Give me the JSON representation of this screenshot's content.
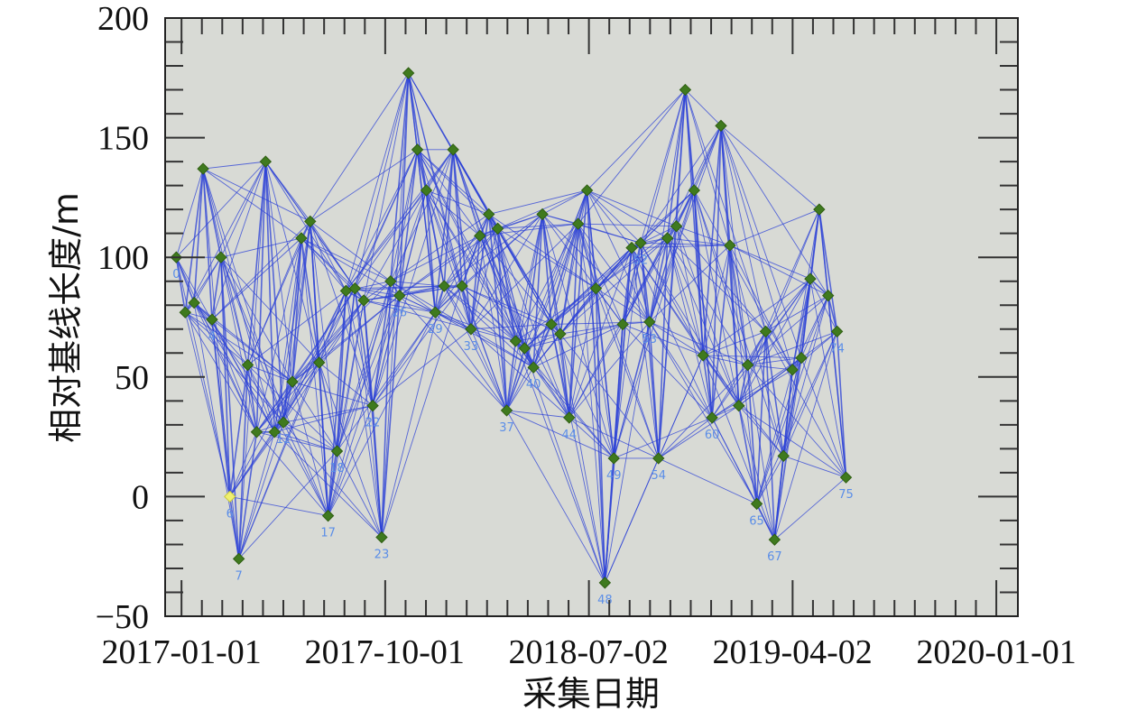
{
  "chart_data": {
    "type": "scatter",
    "xlabel": "采集日期",
    "ylabel": "相对基线长度/m",
    "x_range": [
      "2016-12-10",
      "2020-01-30"
    ],
    "ylim": [
      -50,
      200
    ],
    "x_tick_labels": [
      "2017-01-01",
      "2017-10-01",
      "2018-07-02",
      "2019-04-02",
      "2020-01-01"
    ],
    "y_tick_labels": [
      "−50",
      "0",
      "50",
      "100",
      "150",
      "200"
    ],
    "y_ticks": [
      -50,
      0,
      50,
      100,
      150,
      200
    ],
    "grid": false,
    "background_color": "#d8dad5",
    "marker_color": "#3f7a1e",
    "reference_marker_color": "#f0f070",
    "edge_color": "#2a3fd6",
    "label_color": "#5b8ee8",
    "points": [
      {
        "id": 1,
        "x": "2016-12-25",
        "y": 100,
        "label": "0"
      },
      {
        "id": 2,
        "x": "2017-01-06",
        "y": 77,
        "label": ""
      },
      {
        "id": 3,
        "x": "2017-01-18",
        "y": 81,
        "label": ""
      },
      {
        "id": 4,
        "x": "2017-01-30",
        "y": 137,
        "label": ""
      },
      {
        "id": 5,
        "x": "2017-02-11",
        "y": 74,
        "label": "4"
      },
      {
        "id": 6,
        "x": "2017-02-23",
        "y": 100,
        "label": ""
      },
      {
        "id": 7,
        "x": "2017-03-07",
        "y": 0,
        "label": "6",
        "reference": true
      },
      {
        "id": 8,
        "x": "2017-03-19",
        "y": -26,
        "label": "7"
      },
      {
        "id": 9,
        "x": "2017-03-31",
        "y": 55,
        "label": ""
      },
      {
        "id": 10,
        "x": "2017-04-12",
        "y": 27,
        "label": ""
      },
      {
        "id": 11,
        "x": "2017-04-24",
        "y": 140,
        "label": ""
      },
      {
        "id": 12,
        "x": "2017-05-06",
        "y": 27,
        "label": ""
      },
      {
        "id": 13,
        "x": "2017-05-18",
        "y": 31,
        "label": "12"
      },
      {
        "id": 14,
        "x": "2017-05-30",
        "y": 48,
        "label": ""
      },
      {
        "id": 15,
        "x": "2017-06-11",
        "y": 108,
        "label": ""
      },
      {
        "id": 16,
        "x": "2017-06-23",
        "y": 115,
        "label": ""
      },
      {
        "id": 17,
        "x": "2017-07-05",
        "y": 56,
        "label": ""
      },
      {
        "id": 18,
        "x": "2017-07-17",
        "y": -8,
        "label": "17"
      },
      {
        "id": 19,
        "x": "2017-07-29",
        "y": 19,
        "label": "18"
      },
      {
        "id": 20,
        "x": "2017-08-10",
        "y": 86,
        "label": ""
      },
      {
        "id": 21,
        "x": "2017-08-22",
        "y": 87,
        "label": ""
      },
      {
        "id": 22,
        "x": "2017-09-03",
        "y": 82,
        "label": ""
      },
      {
        "id": 23,
        "x": "2017-09-15",
        "y": 38,
        "label": "22"
      },
      {
        "id": 24,
        "x": "2017-09-27",
        "y": -17,
        "label": "23"
      },
      {
        "id": 25,
        "x": "2017-10-09",
        "y": 90,
        "label": ""
      },
      {
        "id": 26,
        "x": "2017-10-21",
        "y": 84,
        "label": "26"
      },
      {
        "id": 27,
        "x": "2017-11-02",
        "y": 177,
        "label": ""
      },
      {
        "id": 28,
        "x": "2017-11-14",
        "y": 145,
        "label": ""
      },
      {
        "id": 29,
        "x": "2017-11-26",
        "y": 128,
        "label": ""
      },
      {
        "id": 30,
        "x": "2017-12-08",
        "y": 77,
        "label": "29"
      },
      {
        "id": 31,
        "x": "2017-12-20",
        "y": 88,
        "label": ""
      },
      {
        "id": 32,
        "x": "2018-01-01",
        "y": 145,
        "label": ""
      },
      {
        "id": 33,
        "x": "2018-01-13",
        "y": 88,
        "label": ""
      },
      {
        "id": 34,
        "x": "2018-01-25",
        "y": 70,
        "label": "33"
      },
      {
        "id": 35,
        "x": "2018-02-06",
        "y": 109,
        "label": ""
      },
      {
        "id": 36,
        "x": "2018-02-18",
        "y": 118,
        "label": ""
      },
      {
        "id": 37,
        "x": "2018-03-02",
        "y": 112,
        "label": ""
      },
      {
        "id": 38,
        "x": "2018-03-14",
        "y": 36,
        "label": "37"
      },
      {
        "id": 39,
        "x": "2018-03-26",
        "y": 65,
        "label": ""
      },
      {
        "id": 40,
        "x": "2018-04-07",
        "y": 62,
        "label": ""
      },
      {
        "id": 41,
        "x": "2018-04-19",
        "y": 54,
        "label": "40"
      },
      {
        "id": 42,
        "x": "2018-05-01",
        "y": 118,
        "label": ""
      },
      {
        "id": 43,
        "x": "2018-05-13",
        "y": 72,
        "label": ""
      },
      {
        "id": 44,
        "x": "2018-05-25",
        "y": 68,
        "label": ""
      },
      {
        "id": 45,
        "x": "2018-06-06",
        "y": 33,
        "label": "44"
      },
      {
        "id": 46,
        "x": "2018-06-18",
        "y": 114,
        "label": ""
      },
      {
        "id": 47,
        "x": "2018-06-30",
        "y": 128,
        "label": ""
      },
      {
        "id": 48,
        "x": "2018-07-12",
        "y": 87,
        "label": ""
      },
      {
        "id": 49,
        "x": "2018-07-24",
        "y": -36,
        "label": "48"
      },
      {
        "id": 50,
        "x": "2018-08-05",
        "y": 16,
        "label": "49"
      },
      {
        "id": 51,
        "x": "2018-08-17",
        "y": 72,
        "label": ""
      },
      {
        "id": 52,
        "x": "2018-08-29",
        "y": 104,
        "label": ""
      },
      {
        "id": 53,
        "x": "2018-09-10",
        "y": 106,
        "label": "52"
      },
      {
        "id": 54,
        "x": "2018-09-22",
        "y": 73,
        "label": "53"
      },
      {
        "id": 55,
        "x": "2018-10-04",
        "y": 16,
        "label": "54"
      },
      {
        "id": 56,
        "x": "2018-10-16",
        "y": 108,
        "label": ""
      },
      {
        "id": 57,
        "x": "2018-10-28",
        "y": 113,
        "label": ""
      },
      {
        "id": 58,
        "x": "2018-11-09",
        "y": 170,
        "label": ""
      },
      {
        "id": 59,
        "x": "2018-11-21",
        "y": 128,
        "label": ""
      },
      {
        "id": 60,
        "x": "2018-12-03",
        "y": 59,
        "label": ""
      },
      {
        "id": 61,
        "x": "2018-12-15",
        "y": 33,
        "label": "60"
      },
      {
        "id": 62,
        "x": "2018-12-27",
        "y": 155,
        "label": ""
      },
      {
        "id": 63,
        "x": "2019-01-08",
        "y": 105,
        "label": ""
      },
      {
        "id": 64,
        "x": "2019-01-20",
        "y": 38,
        "label": ""
      },
      {
        "id": 65,
        "x": "2019-02-01",
        "y": 55,
        "label": ""
      },
      {
        "id": 66,
        "x": "2019-02-13",
        "y": -3,
        "label": "65"
      },
      {
        "id": 67,
        "x": "2019-02-25",
        "y": 69,
        "label": ""
      },
      {
        "id": 68,
        "x": "2019-03-09",
        "y": -18,
        "label": "67"
      },
      {
        "id": 69,
        "x": "2019-03-21",
        "y": 17,
        "label": ""
      },
      {
        "id": 70,
        "x": "2019-04-02",
        "y": 53,
        "label": ""
      },
      {
        "id": 71,
        "x": "2019-04-14",
        "y": 58,
        "label": ""
      },
      {
        "id": 72,
        "x": "2019-04-26",
        "y": 91,
        "label": ""
      },
      {
        "id": 73,
        "x": "2019-05-08",
        "y": 120,
        "label": ""
      },
      {
        "id": 74,
        "x": "2019-05-20",
        "y": 84,
        "label": ""
      },
      {
        "id": 75,
        "x": "2019-06-01",
        "y": 69,
        "label": "74"
      },
      {
        "id": 76,
        "x": "2019-06-13",
        "y": 8,
        "label": "75"
      }
    ]
  }
}
